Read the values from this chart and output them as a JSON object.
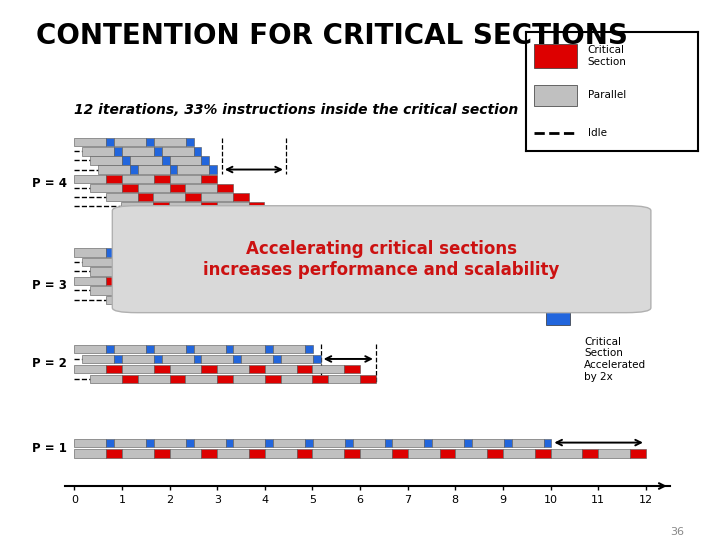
{
  "title": "CONTENTION FOR CRITICAL SECTIONS",
  "subtitle": "12 iterations, 33% instructions inside the critical section",
  "title_fontsize": 20,
  "subtitle_fontsize": 10,
  "bg_color": "#ffffff",
  "slide_number": "36",
  "gray": "#c0c0c0",
  "red": "#dd0000",
  "blue": "#2266dd",
  "annotation_text": "Accelerating critical sections\nincreases performance and scalability",
  "annotation_color": "#cc1111"
}
